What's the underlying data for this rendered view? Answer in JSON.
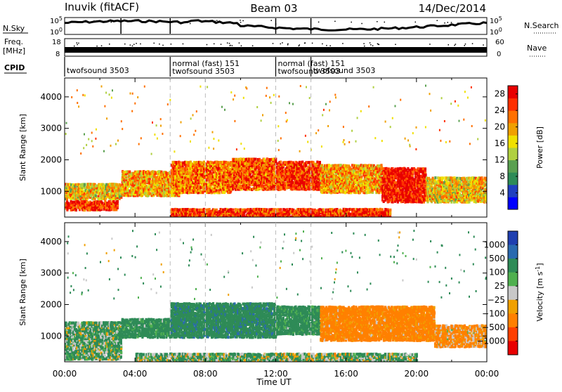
{
  "header": {
    "station": "Inuvik (fitACF)",
    "beam": "Beam 03",
    "date": "14/Dec/2014"
  },
  "noise_panel": {
    "left_label": "N.Sky",
    "right_label": "N.Search",
    "ticks": [
      "10^5",
      "10^0"
    ]
  },
  "freq_panel": {
    "left_label": "Freq.",
    "left_unit": "[MHz]",
    "left_ticks": [
      "18",
      "8"
    ],
    "right_label": "Nave",
    "right_ticks": [
      "60",
      "0"
    ]
  },
  "cpid": {
    "label": "CPID",
    "segments": [
      {
        "start": 0.0,
        "end": 6.0,
        "lines": [
          "twofsound 3503"
        ]
      },
      {
        "start": 6.0,
        "end": 12.0,
        "lines": [
          "normal (fast) 151",
          "twofsound 3503"
        ]
      },
      {
        "start": 12.0,
        "end": 14.0,
        "lines": [
          "normal (fast) 151",
          "twofsound 3503"
        ]
      },
      {
        "start": 14.0,
        "end": 24.0,
        "lines": [
          "twofsound 3503"
        ]
      }
    ]
  },
  "chart_data": [
    {
      "type": "heatmap",
      "title": "",
      "xlabel": "Time UT",
      "ylabel": "Slant Range [km]",
      "xlim": [
        0,
        24
      ],
      "ylim": [
        180,
        4600
      ],
      "x_ticks": [
        "00:00",
        "04:00",
        "08:00",
        "12:00",
        "16:00",
        "20:00",
        "00:00"
      ],
      "y_ticks": [
        1000,
        2000,
        3000,
        4000
      ],
      "colorbar": {
        "label": "Power [dB]",
        "ticks": [
          4,
          8,
          12,
          16,
          20,
          24,
          28
        ],
        "range": [
          0,
          30
        ],
        "colors": [
          "#0000ff",
          "#2040c0",
          "#2e8b57",
          "#5aa050",
          "#b0d040",
          "#f0e000",
          "#f0a000",
          "#ff7000",
          "#ff3000",
          "#e80000"
        ]
      },
      "regions": [
        {
          "x": [
            0.0,
            3.2
          ],
          "y": [
            800,
            1300
          ],
          "value": 18
        },
        {
          "x": [
            0.0,
            3.0
          ],
          "y": [
            450,
            750
          ],
          "value": 26
        },
        {
          "x": [
            3.2,
            6.5
          ],
          "y": [
            900,
            1700
          ],
          "value": 20
        },
        {
          "x": [
            6.0,
            9.5
          ],
          "y": [
            1000,
            2000
          ],
          "value": 22
        },
        {
          "x": [
            9.5,
            12.0
          ],
          "y": [
            1100,
            2100
          ],
          "value": 24
        },
        {
          "x": [
            12.0,
            14.5
          ],
          "y": [
            1100,
            2000
          ],
          "value": 26
        },
        {
          "x": [
            14.5,
            18.0
          ],
          "y": [
            1000,
            1900
          ],
          "value": 20
        },
        {
          "x": [
            18.0,
            20.5
          ],
          "y": [
            700,
            1800
          ],
          "value": 28
        },
        {
          "x": [
            20.5,
            24.0
          ],
          "y": [
            700,
            1500
          ],
          "value": 18
        },
        {
          "x": [
            6.0,
            18.5
          ],
          "y": [
            200,
            500
          ],
          "value": 26
        }
      ]
    },
    {
      "type": "heatmap",
      "title": "",
      "xlabel": "Time UT",
      "ylabel": "Slant Range [km]",
      "xlim": [
        0,
        24
      ],
      "ylim": [
        180,
        4600
      ],
      "x_ticks": [
        "00:00",
        "04:00",
        "08:00",
        "12:00",
        "16:00",
        "20:00",
        "00:00"
      ],
      "y_ticks": [
        1000,
        2000,
        3000,
        4000
      ],
      "colorbar": {
        "label": "Velocity [m s^-1]",
        "ticks": [
          "1000",
          "500",
          "100",
          "25",
          "−25",
          "−100",
          "−500",
          "−1000"
        ],
        "colors": [
          "#1f3fb0",
          "#2a6ab0",
          "#2e8b57",
          "#4fb04f",
          "#c8c8c8",
          "#f0a000",
          "#ff8000",
          "#ff4000",
          "#e80000"
        ]
      },
      "regions": [
        {
          "x": [
            0.0,
            3.2
          ],
          "y": [
            300,
            1500
          ],
          "value": 80
        },
        {
          "x": [
            3.2,
            6.0
          ],
          "y": [
            1000,
            1600
          ],
          "value": 150
        },
        {
          "x": [
            6.0,
            12.0
          ],
          "y": [
            1000,
            2100
          ],
          "value": 200
        },
        {
          "x": [
            12.0,
            14.5
          ],
          "y": [
            1100,
            2000
          ],
          "value": 150
        },
        {
          "x": [
            14.5,
            21.0
          ],
          "y": [
            900,
            2000
          ],
          "value": -150
        },
        {
          "x": [
            21.0,
            24.0
          ],
          "y": [
            700,
            1400
          ],
          "value": -100
        },
        {
          "x": [
            4.0,
            20.0
          ],
          "y": [
            200,
            500
          ],
          "value": 60
        }
      ]
    }
  ]
}
